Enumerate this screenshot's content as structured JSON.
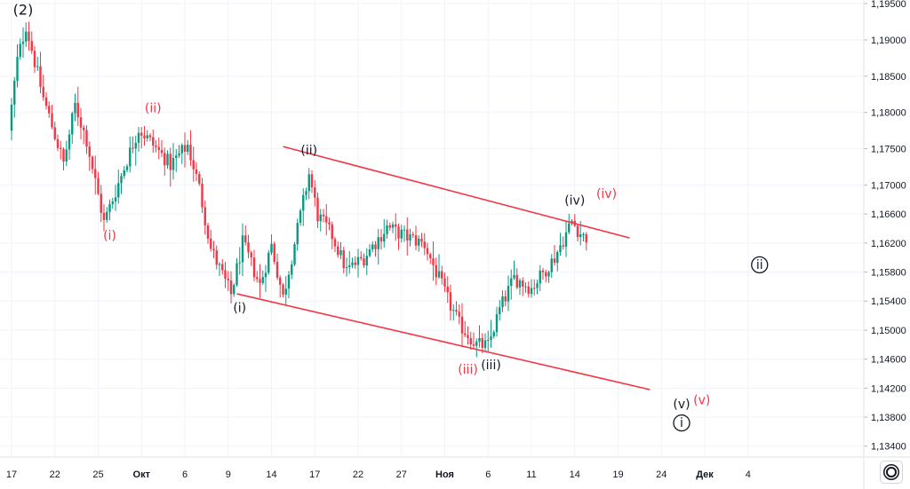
{
  "chart_data": {
    "type": "candlestick",
    "title": "",
    "xlabel": "",
    "ylabel": "",
    "ylim": [
      1.1325,
      1.1955
    ],
    "grid": true,
    "y_ticks": [
      "1,19500",
      "1,19000",
      "1,18500",
      "1,18000",
      "1,17500",
      "1,17000",
      "1,16600",
      "1,16200",
      "1,15800",
      "1,15400",
      "1,15000",
      "1,14600",
      "1,14200",
      "1,13800",
      "1,13400"
    ],
    "x_ticks": [
      "17",
      "22",
      "25",
      "Окт",
      "6",
      "9",
      "14",
      "17",
      "22",
      "27",
      "Ноя",
      "6",
      "11",
      "14",
      "19",
      "24",
      "Дек",
      "4"
    ],
    "x_tick_index": [
      0,
      15,
      30,
      45,
      60,
      75,
      90,
      105,
      120,
      135,
      150,
      165,
      180,
      195,
      210,
      225,
      240,
      255
    ],
    "bars_per_tick": 15,
    "path": [
      [
        0,
        1.1775
      ],
      [
        3,
        1.1872
      ],
      [
        6,
        1.192
      ],
      [
        12,
        1.182
      ],
      [
        19,
        1.173
      ],
      [
        23,
        1.181
      ],
      [
        27,
        1.1762
      ],
      [
        33,
        1.1648
      ],
      [
        45,
        1.1778
      ],
      [
        56,
        1.1728
      ],
      [
        62,
        1.1755
      ],
      [
        66,
        1.1696
      ],
      [
        70,
        1.1612
      ],
      [
        77,
        1.1549
      ],
      [
        81,
        1.162
      ],
      [
        87,
        1.1562
      ],
      [
        91,
        1.1617
      ],
      [
        95,
        1.1545
      ],
      [
        99,
        1.162
      ],
      [
        104,
        1.1715
      ],
      [
        107,
        1.1658
      ],
      [
        112,
        1.163
      ],
      [
        117,
        1.1582
      ],
      [
        123,
        1.16
      ],
      [
        131,
        1.1642
      ],
      [
        137,
        1.163
      ],
      [
        144,
        1.1618
      ],
      [
        148,
        1.158
      ],
      [
        152,
        1.1542
      ],
      [
        156,
        1.1508
      ],
      [
        162,
        1.148
      ],
      [
        166,
        1.1478
      ],
      [
        170,
        1.1528
      ],
      [
        175,
        1.1572
      ],
      [
        181,
        1.1558
      ],
      [
        189,
        1.16
      ],
      [
        195,
        1.165
      ],
      [
        199,
        1.1628
      ]
    ],
    "channel_upper": [
      [
        94,
        1.1753
      ],
      [
        214,
        1.1627
      ]
    ],
    "channel_lower": [
      [
        78,
        1.155
      ],
      [
        221,
        1.1418
      ]
    ],
    "labels": [
      {
        "text": "(2)",
        "i": 4,
        "y": 1.1935,
        "color": "#131722",
        "size": "big"
      },
      {
        "text": "(ii)",
        "i": 49,
        "y": 1.18,
        "color": "#f23645"
      },
      {
        "text": "(i)",
        "i": 34,
        "y": 1.1625,
        "color": "#f23645"
      },
      {
        "text": "(ii)",
        "i": 103,
        "y": 1.1742,
        "color": "#131722"
      },
      {
        "text": "(i)",
        "i": 79,
        "y": 1.1525,
        "color": "#131722"
      },
      {
        "text": "(iv)",
        "i": 195,
        "y": 1.1673,
        "color": "#131722"
      },
      {
        "text": "(iv)",
        "i": 206,
        "y": 1.1682,
        "color": "#f23645"
      },
      {
        "text": "(iii)",
        "i": 158,
        "y": 1.144,
        "color": "#f23645"
      },
      {
        "text": "(iii)",
        "i": 166,
        "y": 1.1446,
        "color": "#131722"
      },
      {
        "text": "(v)",
        "i": 232,
        "y": 1.1392,
        "color": "#131722"
      },
      {
        "text": "(v)",
        "i": 239,
        "y": 1.1398,
        "color": "#f23645"
      }
    ],
    "circled": [
      {
        "text": "ii",
        "i": 259,
        "y": 1.159
      },
      {
        "text": "i",
        "i": 232,
        "y": 1.1372
      }
    ],
    "colors": {
      "up": "#089981",
      "down": "#f23645",
      "channel": "#f23645",
      "grid": "#f0f3fa",
      "axis": "#e0e3eb"
    }
  }
}
